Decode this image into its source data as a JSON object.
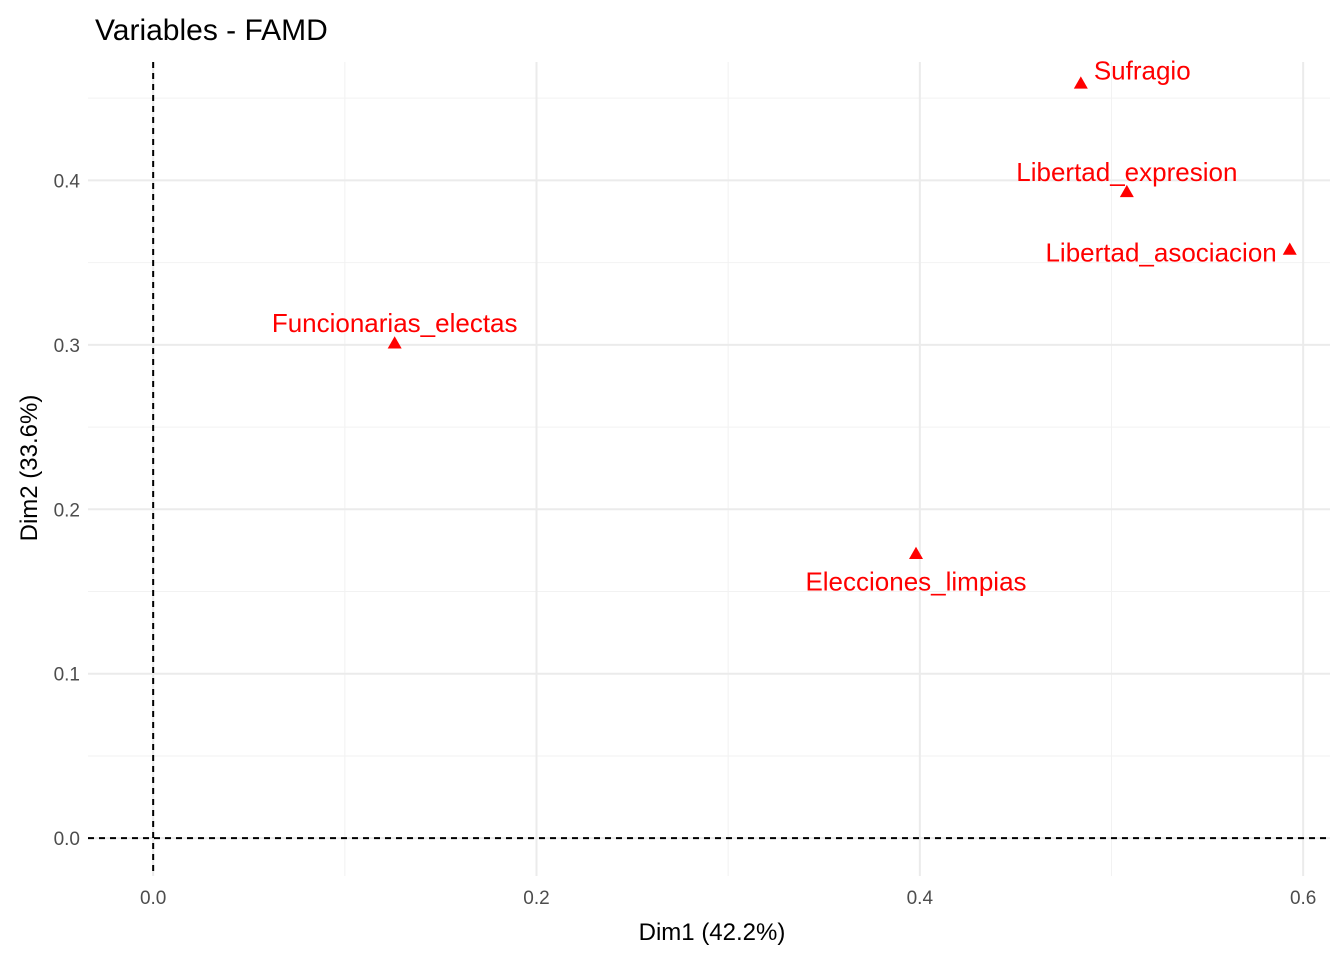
{
  "chart_data": {
    "type": "scatter",
    "title": "Variables - FAMD",
    "xlabel": "Dim1 (42.2%)",
    "ylabel": "Dim2 (33.6%)",
    "xlim": [
      -0.034,
      0.614
    ],
    "ylim": [
      -0.023,
      0.472
    ],
    "x_ticks": [
      0.0,
      0.2,
      0.4,
      0.6
    ],
    "x_tick_labels": [
      "0.0",
      "0.2",
      "0.4",
      "0.6"
    ],
    "y_ticks": [
      0.0,
      0.1,
      0.2,
      0.3,
      0.4
    ],
    "y_tick_labels": [
      "0.0",
      "0.1",
      "0.2",
      "0.3",
      "0.4"
    ],
    "grid": true,
    "reference_lines": {
      "x": 0,
      "y": 0,
      "style": "dashed"
    },
    "marker": "triangle",
    "color": "#ff0000",
    "points": [
      {
        "label": "Sufragio",
        "x": 0.484,
        "y": 0.459,
        "label_anchor": "start",
        "label_side": "right"
      },
      {
        "label": "Libertad_expresion",
        "x": 0.508,
        "y": 0.393,
        "label_anchor": "middle",
        "label_side": "above"
      },
      {
        "label": "Libertad_asociacion",
        "x": 0.593,
        "y": 0.358,
        "label_anchor": "end",
        "label_side": "left"
      },
      {
        "label": "Funcionarias_electas",
        "x": 0.126,
        "y": 0.301,
        "label_anchor": "middle",
        "label_side": "above"
      },
      {
        "label": "Elecciones_limpias",
        "x": 0.398,
        "y": 0.173,
        "label_anchor": "middle",
        "label_side": "below"
      }
    ]
  }
}
